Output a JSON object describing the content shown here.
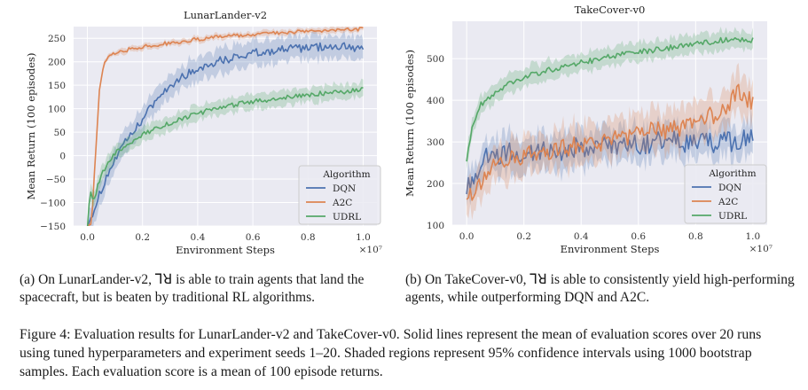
{
  "colors": {
    "dqn": "#4c72b0",
    "a2c": "#dd8452",
    "udrl": "#55a868",
    "plot_bg": "#eaeaf2",
    "grid": "#ffffff"
  },
  "chart_data": [
    {
      "type": "line",
      "title": "LunarLander-v2",
      "xlabel": "Environment Steps",
      "ylabel": "Mean Return (100 episodes)",
      "x_multiplier": "×10⁷",
      "xlim": [
        -0.05,
        1.05
      ],
      "ylim": [
        -150,
        275
      ],
      "xticks": [
        0.0,
        0.2,
        0.4,
        0.6,
        0.8,
        1.0
      ],
      "yticks": [
        -150,
        -100,
        -50,
        0,
        50,
        100,
        150,
        200,
        250
      ],
      "legend": {
        "title": "Algorithm",
        "position": "lower-right"
      },
      "series": [
        {
          "name": "DQN",
          "key": "dqn",
          "band": 25,
          "noise": 9,
          "x": [
            0.0,
            0.02,
            0.04,
            0.06,
            0.08,
            0.1,
            0.14,
            0.18,
            0.22,
            0.26,
            0.3,
            0.35,
            0.4,
            0.45,
            0.5,
            0.55,
            0.6,
            0.65,
            0.7,
            0.75,
            0.8,
            0.85,
            0.9,
            0.95,
            1.0
          ],
          "y": [
            -150,
            -120,
            -90,
            -60,
            -30,
            -10,
            30,
            60,
            95,
            125,
            150,
            170,
            185,
            198,
            205,
            212,
            218,
            222,
            226,
            228,
            230,
            232,
            233,
            234,
            225
          ]
        },
        {
          "name": "A2C",
          "key": "a2c",
          "band": 6,
          "noise": 4,
          "x": [
            0.0,
            0.015,
            0.025,
            0.035,
            0.045,
            0.06,
            0.08,
            0.1,
            0.15,
            0.2,
            0.3,
            0.4,
            0.5,
            0.6,
            0.7,
            0.8,
            0.9,
            1.0
          ],
          "y": [
            -150,
            -150,
            -40,
            60,
            150,
            200,
            215,
            220,
            226,
            232,
            240,
            248,
            254,
            258,
            262,
            265,
            267,
            270
          ]
        },
        {
          "name": "UDRL",
          "key": "udrl",
          "band": 16,
          "noise": 5,
          "x": [
            0.0,
            0.01,
            0.02,
            0.04,
            0.06,
            0.08,
            0.1,
            0.15,
            0.2,
            0.3,
            0.4,
            0.5,
            0.6,
            0.7,
            0.8,
            0.9,
            1.0
          ],
          "y": [
            -150,
            -70,
            -100,
            -60,
            -30,
            -10,
            5,
            25,
            45,
            70,
            90,
            105,
            115,
            122,
            130,
            135,
            140
          ]
        }
      ]
    },
    {
      "type": "line",
      "title": "TakeCover-v0",
      "xlabel": "Environment Steps",
      "ylabel": "Mean Return (100 episodes)",
      "x_multiplier": "×10⁷",
      "xlim": [
        -0.05,
        1.05
      ],
      "ylim": [
        100,
        590
      ],
      "xticks": [
        0.0,
        0.2,
        0.4,
        0.6,
        0.8,
        1.0
      ],
      "yticks": [
        100,
        200,
        300,
        400,
        500
      ],
      "legend": {
        "title": "Algorithm",
        "position": "lower-right"
      },
      "series": [
        {
          "name": "DQN",
          "key": "dqn",
          "band": 40,
          "noise": 26,
          "x": [
            0.0,
            0.02,
            0.04,
            0.06,
            0.1,
            0.2,
            0.3,
            0.4,
            0.5,
            0.6,
            0.7,
            0.8,
            0.9,
            1.0
          ],
          "y": [
            200,
            210,
            240,
            260,
            270,
            275,
            280,
            285,
            290,
            295,
            300,
            300,
            300,
            305
          ]
        },
        {
          "name": "A2C",
          "key": "a2c",
          "band": 45,
          "noise": 24,
          "x": [
            0.0,
            0.02,
            0.04,
            0.06,
            0.1,
            0.2,
            0.3,
            0.4,
            0.5,
            0.6,
            0.7,
            0.8,
            0.9,
            0.95,
            1.0
          ],
          "y": [
            185,
            180,
            190,
            220,
            245,
            265,
            280,
            295,
            305,
            320,
            330,
            345,
            375,
            420,
            400
          ]
        },
        {
          "name": "UDRL",
          "key": "udrl",
          "band": 22,
          "noise": 7,
          "x": [
            0.0,
            0.02,
            0.05,
            0.1,
            0.15,
            0.2,
            0.3,
            0.4,
            0.5,
            0.6,
            0.7,
            0.8,
            0.9,
            1.0
          ],
          "y": [
            260,
            340,
            390,
            420,
            440,
            455,
            475,
            490,
            505,
            515,
            525,
            535,
            545,
            545
          ]
        }
      ]
    }
  ],
  "captions": {
    "a": "(a) On LunarLander-v2, ⅂ꓤ is able to train agents that land the spacecraft, but is beaten by traditional RL algorithms.",
    "b": "(b) On TakeCover-v0, ⅂ꓤ is able to consistently yield high-performing agents, while outperforming DQN and A2C.",
    "figure": "Figure 4: Evaluation results for LunarLander-v2 and TakeCover-v0. Solid lines represent the mean of evaluation scores over 20 runs using tuned hyperparameters and experiment seeds 1–20. Shaded regions represent 95% confidence intervals using 1000 bootstrap samples. Each evaluation score is a mean of 100 episode returns."
  }
}
